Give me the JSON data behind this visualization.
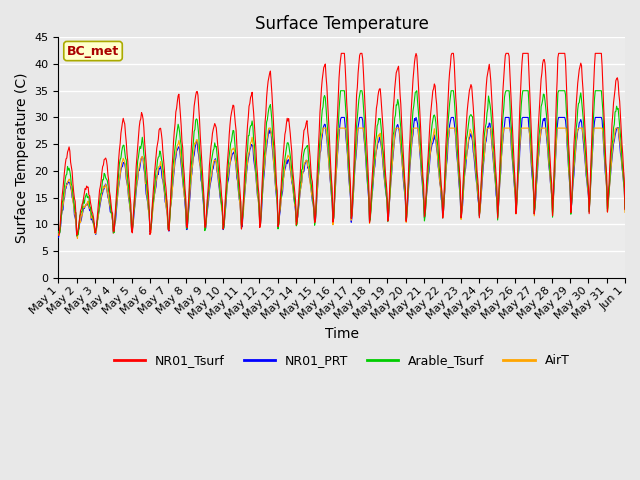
{
  "title": "Surface Temperature",
  "xlabel": "Time",
  "ylabel": "Surface Temperature (C)",
  "ylim": [
    0,
    45
  ],
  "yticks": [
    0,
    5,
    10,
    15,
    20,
    25,
    30,
    35,
    40,
    45
  ],
  "colors": {
    "NR01_Tsurf": "#ff0000",
    "NR01_PRT": "#0000ff",
    "Arable_Tsurf": "#00cc00",
    "AirT": "#ffa500"
  },
  "annotation": "BC_met",
  "annotation_color": "#aa0000",
  "annotation_bg": "#ffffcc",
  "annotation_border": "#aaaa00",
  "background_color": "#e8e8e8",
  "plot_bg": "#ebebeb",
  "title_fontsize": 12,
  "axis_fontsize": 10,
  "tick_fontsize": 8,
  "legend_fontsize": 9,
  "n_days": 31,
  "n_points": 744
}
